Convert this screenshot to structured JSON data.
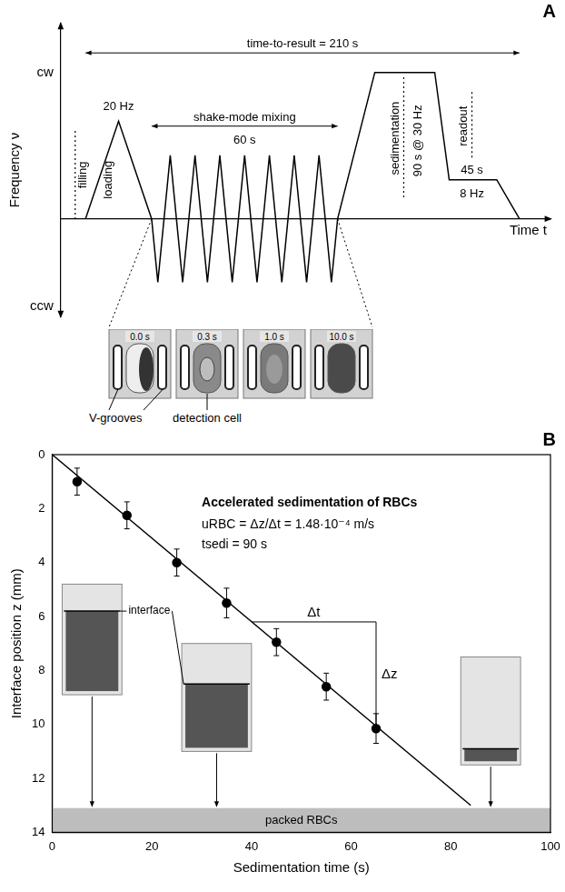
{
  "chart_data": [
    {
      "type": "line",
      "title": "A",
      "xlabel": "Time t",
      "ylabel": "Frequency ν",
      "xlim": [
        -12,
        225
      ],
      "xticks": [],
      "ylim": [
        -20,
        40
      ],
      "yticks": [
        {
          "value": 30,
          "label": "cw"
        },
        {
          "value": -18,
          "label": "ccw"
        }
      ],
      "tick_labels": "y",
      "grid": false,
      "color": "#000000",
      "x": [
        0,
        16,
        32,
        35,
        41,
        47,
        53,
        59,
        65,
        71,
        77,
        83,
        89,
        95,
        101,
        107,
        113,
        119,
        122,
        140,
        169,
        176,
        199,
        210
      ],
      "values": [
        0,
        20,
        0,
        -13,
        13,
        -13,
        13,
        -13,
        13,
        -13,
        13,
        -13,
        13,
        -13,
        13,
        -13,
        13,
        -13,
        0,
        30,
        30,
        8,
        8,
        0
      ],
      "annotations": [
        {
          "text": "time-to-result = 210 s",
          "x": [
            0,
            210
          ],
          "y": 34
        },
        {
          "text": "shake-mode mixing",
          "x": [
            32,
            122
          ],
          "y": 19
        },
        {
          "text": "60 s",
          "x": 77,
          "y": 16
        },
        {
          "text": "20 Hz",
          "x": 16,
          "y": 23
        },
        {
          "text": "loading",
          "x": 11,
          "y": [
            2,
            14
          ]
        },
        {
          "text": "filling",
          "x": -5,
          "y": [
            0,
            18
          ],
          "line_style": "dotted"
        },
        {
          "text": "sedimentation",
          "x": 154,
          "y": [
            4,
            29
          ],
          "line_style": "dotted"
        },
        {
          "text": "90 s @ 30 Hz",
          "x": 161,
          "y": [
            4,
            28
          ]
        },
        {
          "text": "readout",
          "x": 187,
          "y": [
            12,
            26
          ],
          "line_style": "dotted"
        },
        {
          "text": "45 s",
          "x": 187,
          "y": 10
        },
        {
          "text": "8 Hz",
          "x": 187,
          "y": 5
        }
      ],
      "images": {
        "captions": [
          "0.0 s",
          "0.3 s",
          "1.0 s",
          "10.0 s"
        ],
        "labels": [
          "V-grooves",
          "detection cell"
        ]
      }
    },
    {
      "type": "scatter",
      "title": "B",
      "xlabel": "Sedimentation time (s)",
      "ylabel": "Interface position z (mm)",
      "xlim": [
        0,
        100
      ],
      "xticks": [
        0,
        20,
        40,
        60,
        80,
        100
      ],
      "ylim": [
        14,
        0
      ],
      "yticks": [
        0,
        2,
        4,
        6,
        8,
        10,
        12,
        14
      ],
      "grid": false,
      "series": [
        {
          "type": "line",
          "x": [
            0,
            84
          ],
          "values": [
            0,
            13
          ],
          "color": "#000000"
        },
        {
          "type": "scatter",
          "x": [
            5,
            15,
            25,
            35,
            45,
            55,
            65
          ],
          "values": [
            1.0,
            2.25,
            4.0,
            5.5,
            6.95,
            8.6,
            10.15
          ],
          "errors": [
            0.5,
            0.5,
            0.5,
            0.55,
            0.5,
            0.5,
            0.55
          ],
          "color": "#000000",
          "marker": "circle"
        }
      ],
      "bands": [
        {
          "text": "packed RBCs",
          "y": [
            13.1,
            14
          ],
          "color": "#bdbdbd"
        }
      ],
      "annotations": [
        {
          "text": "Accelerated sedimentation of RBCs",
          "x": 30,
          "y": 1.8
        },
        {
          "text": "uRBC = Δz/Δt = 1.48·10⁻⁴ m/s",
          "x": 30,
          "y": 2.6
        },
        {
          "text": "tsedi = 90 s",
          "x": 30,
          "y": 3.35
        },
        {
          "text": "Δt",
          "x": [
            40,
            65
          ],
          "y": 6.2
        },
        {
          "text": "Δz",
          "x": 65,
          "y": [
            6.2,
            10.1
          ]
        },
        {
          "text": "interface",
          "x": 19.5,
          "y": 5.8
        }
      ]
    }
  ]
}
